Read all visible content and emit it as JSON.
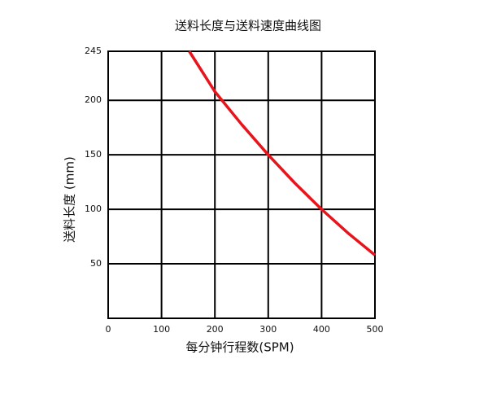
{
  "chart_data": {
    "type": "line",
    "title": "送料长度与送料速度曲线图",
    "x_label": "每分钟行程数(SPM)",
    "y_label": "送料长度 (mm)",
    "x": [
      152,
      200,
      250,
      300,
      350,
      400,
      450,
      500
    ],
    "series": [
      {
        "name": "送料长度",
        "color": "#e8141c",
        "values": [
          245,
          208,
          178,
          150,
          124,
          100,
          78,
          58
        ]
      }
    ],
    "xlim": [
      0,
      500
    ],
    "xticks": [
      0,
      100,
      200,
      300,
      400,
      500
    ],
    "ylim": [
      0,
      245
    ],
    "yticks": [
      50,
      100,
      150,
      200,
      245
    ],
    "grid": true
  }
}
